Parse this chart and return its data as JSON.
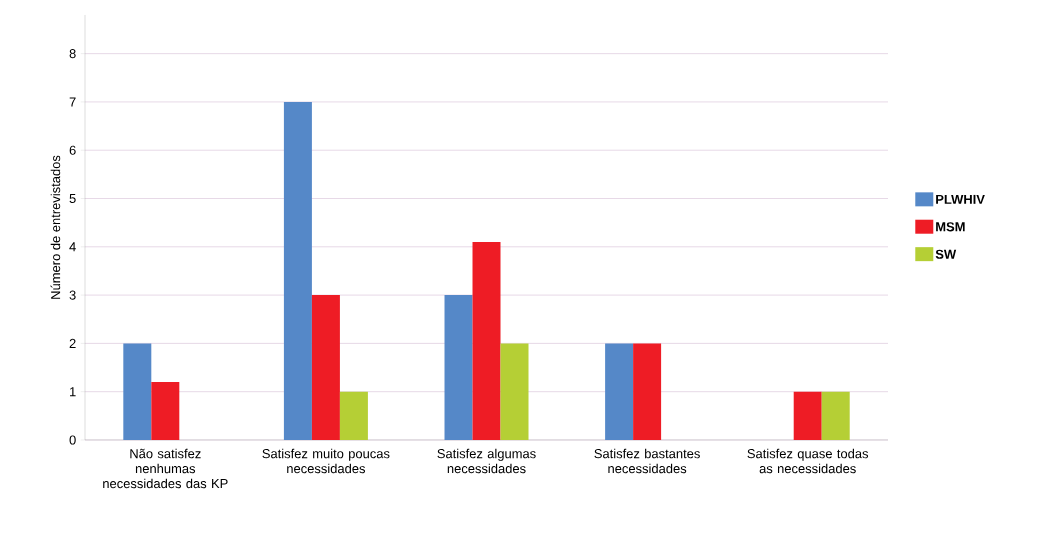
{
  "chart_data": {
    "type": "bar",
    "ylabel": "Número de entrevistados",
    "categories": [
      "Não satisfez nenhumas necessidades das KP",
      "Satisfez muito poucas necessidades",
      "Satisfez algumas necessidades",
      "Satisfez bastantes necessidades",
      "Satisfez quase todas as necessidades"
    ],
    "series": [
      {
        "name": "PLWHIV",
        "color": "#5588c8",
        "values": [
          2,
          7,
          3,
          2,
          null
        ]
      },
      {
        "name": "MSM",
        "color": "#ee1c25",
        "values": [
          1.2,
          3,
          4.1,
          2,
          1
        ]
      },
      {
        "name": "SW",
        "color": "#b5cf35",
        "values": [
          null,
          1,
          2,
          null,
          1
        ]
      }
    ],
    "ylim": [
      0,
      8.8
    ],
    "yticks": [
      0,
      1,
      2,
      3,
      4,
      5,
      6,
      7,
      8
    ],
    "grid": "y",
    "legend": "right"
  }
}
